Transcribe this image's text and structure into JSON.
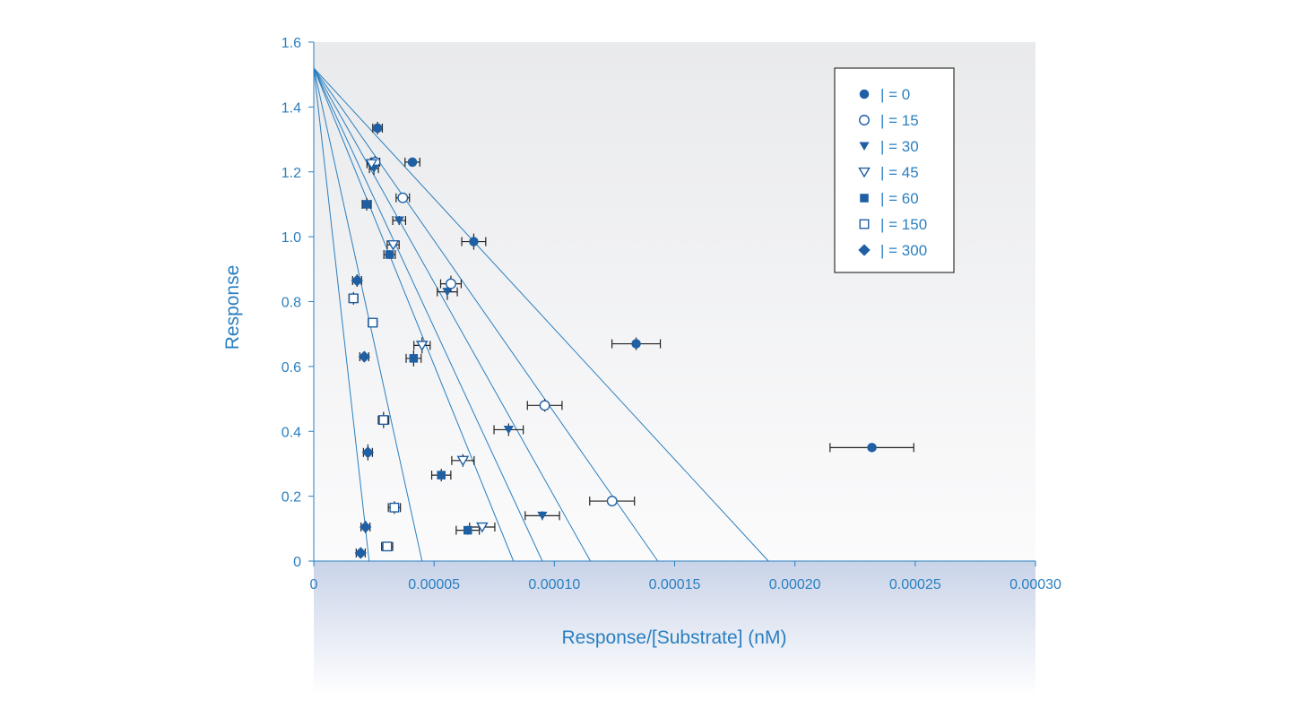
{
  "chart_data": {
    "type": "scatter",
    "title": "",
    "xlabel": "Response/[Substrate] (nM)",
    "ylabel": "Response",
    "xlim": [
      0,
      0.0003
    ],
    "ylim": [
      0,
      1.6
    ],
    "x_ticks": [
      "0",
      "0.00005",
      "0.00010",
      "0.00015",
      "0.00020",
      "0.00025",
      "0.00030"
    ],
    "y_ticks": [
      "0",
      "0.2",
      "0.4",
      "0.6",
      "0.8",
      "1.0",
      "1.2",
      "1.4",
      "1.6"
    ],
    "grid": false,
    "legend_position": "top-right",
    "colors": {
      "marker": "#1f5fa3",
      "line": "#2a7fc0",
      "text": "#2a7fc0",
      "errorbar": "#222222"
    },
    "fit_lines": [
      {
        "y_intercept": 1.52,
        "x_intercept": 0.000189
      },
      {
        "y_intercept": 1.52,
        "x_intercept": 0.000143
      },
      {
        "y_intercept": 1.52,
        "x_intercept": 0.000115
      },
      {
        "y_intercept": 1.52,
        "x_intercept": 9.5e-05
      },
      {
        "y_intercept": 1.52,
        "x_intercept": 8.3e-05
      },
      {
        "y_intercept": 1.52,
        "x_intercept": 4.5e-05
      },
      {
        "y_intercept": 1.52,
        "x_intercept": 2.3e-05
      }
    ],
    "series": [
      {
        "name": "| = 0",
        "marker": "circle-filled",
        "x": [
          0.000232,
          0.000134,
          6.65e-05,
          4.1e-05,
          2.65e-05
        ],
        "y": [
          0.35,
          0.67,
          0.985,
          1.23,
          1.335
        ]
      },
      {
        "name": "| = 15",
        "marker": "circle-open",
        "x": [
          0.000124,
          9.6e-05,
          5.7e-05,
          3.7e-05,
          2.55e-05
        ],
        "y": [
          0.185,
          0.48,
          0.855,
          1.12,
          1.23
        ]
      },
      {
        "name": "| = 30",
        "marker": "triangle-down-filled",
        "x": [
          9.5e-05,
          8.1e-05,
          5.55e-05,
          3.55e-05,
          2.5e-05
        ],
        "y": [
          0.14,
          0.405,
          0.83,
          1.05,
          1.21
        ]
      },
      {
        "name": "| = 45",
        "marker": "triangle-down-open",
        "x": [
          7e-05,
          6.2e-05,
          4.5e-05,
          3.3e-05,
          2.4e-05
        ],
        "y": [
          0.105,
          0.31,
          0.665,
          0.975,
          1.225
        ]
      },
      {
        "name": "| = 60",
        "marker": "square-filled",
        "x": [
          6.4e-05,
          5.3e-05,
          4.15e-05,
          3.15e-05,
          2.2e-05
        ],
        "y": [
          0.095,
          0.265,
          0.625,
          0.945,
          1.1
        ]
      },
      {
        "name": "| = 150",
        "marker": "square-open",
        "x": [
          3.05e-05,
          3.35e-05,
          2.9e-05,
          2.45e-05,
          1.65e-05
        ],
        "y": [
          0.045,
          0.165,
          0.435,
          0.735,
          0.81
        ]
      },
      {
        "name": "| = 300",
        "marker": "diamond-filled",
        "x": [
          1.95e-05,
          2.15e-05,
          2.25e-05,
          2.1e-05,
          1.8e-05
        ],
        "y": [
          0.025,
          0.105,
          0.335,
          0.63,
          0.865
        ]
      }
    ]
  }
}
